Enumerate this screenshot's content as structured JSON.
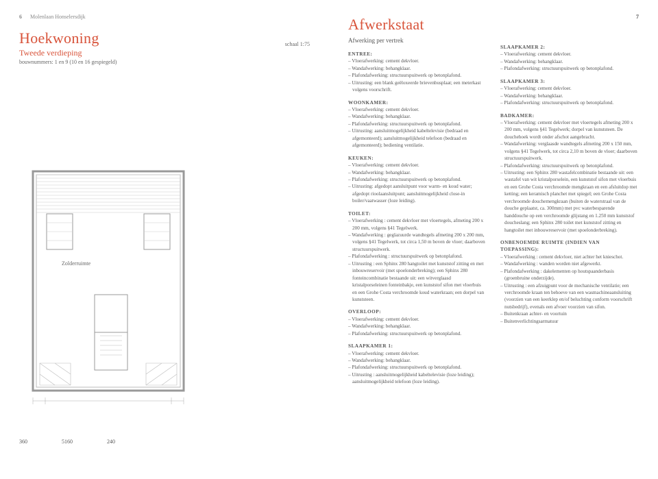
{
  "header": {
    "pageLeft": "6",
    "pageRight": "7",
    "text": "Molenlaan Honselersdijk"
  },
  "left": {
    "title": "Hoekwoning",
    "subtitle": "Tweede verdieping",
    "bouwnummers": "bouwnummers: 1 en 9 (10 en 16 gespiegeld)",
    "schaal": "schaal 1:75",
    "zolder": "Zolderruimte",
    "dim1": "360",
    "dim2": "5160",
    "dim3": "240"
  },
  "right": {
    "title": "Afwerkstaat",
    "subtitle": "Afwerking per vertrek",
    "sections": {
      "entree": {
        "h": "ENTREE:",
        "lines": [
          "– Vloerafwerking: cement dekvloer.",
          "– Wandafwerking: behangklaar.",
          "– Plafondafwerking: structuurspuitwerk op betonplafond.",
          "– Uitrusting: een blank geëloxeerde brievenbusplaat; een meterkast volgens voorschrift."
        ]
      },
      "woonkamer": {
        "h": "WOONKAMER:",
        "lines": [
          "– Vloerafwerking: cement dekvloer.",
          "– Wandafwerking: behangklaar.",
          "– Plafondafwerking: structuurspuitwerk op betonplafond.",
          "– Uitrusting: aansluitmogelijkheid kabeltelevisie (bedraad en afgemonteerd); aansluitmogelijkheid telefoon (bedraad en afgemonteerd); bediening ventilatie."
        ]
      },
      "keuken": {
        "h": "KEUKEN:",
        "lines": [
          "– Vloerafwerking: cement dekvloer.",
          "– Wandafwerking: behangklaar.",
          "– Plafondafwerking: structuurspuitwerk op betonplafond.",
          "– Uitrusting: afgedopt aansluitpunt voor warm- en koud water; afgedopt rioolaansluitpunt; aansluitmogelijkheid close-in boiler/vaatwasser (loze leiding)."
        ]
      },
      "toilet": {
        "h": "TOILET:",
        "lines": [
          "– Vloerafwerking : cement dekvloer met vloertegels, afmeting 200 x 200 mm, volgens §41 Tegelwerk.",
          "– Wandafwerking : geglazuurde wandtegels afmeting 200 x 200 mm, volgens §41 Tegelwerk, tot circa 1,50 m boven de vloer; daarboven structuurspuitwerk.",
          "– Plafondafwerking : structuurspuitwerk op betonplafond.",
          "– Uitrusting : een Sphinx 280 hangtoilet met kunststof zitting en met inbouwreservoir (met spoelonderbreking); een Sphinx 280 fonteincombinatie bestaande uit: een witverglaasd kristalporseleinen fonteinbakje, een kunststof sifon met vloerbuis en een Grohe Costa verchroomde koud waterkraan; een dorpel van kunststeen."
        ]
      },
      "overloop": {
        "h": "OVERLOOP:",
        "lines": [
          "– Vloerafwerking: cement dekvloer.",
          "– Wandafwerking: behangklaar.",
          "– Plafondafwerking: structuurspuitwerk op betonplafond."
        ]
      },
      "slaap1": {
        "h": "SLAAPKAMER 1:",
        "lines": [
          "– Vloerafwerking: cement dekvloer.",
          "– Wandafwerking: behangklaar.",
          "– Plafondafwerking: structuurspuitwerk op betonplafond.",
          "– Uitrusting : aansluitmogelijkheid kabeltelevisie (loze leiding); aansluitmogelijkheid telefoon (loze leiding)."
        ]
      },
      "slaap2": {
        "h": "SLAAPKAMER 2:",
        "lines": [
          "– Vloerafwerking: cement dekvloer.",
          "– Wandafwerking: behangklaar.",
          "– Plafondafwerking: structuurspuitwerk op betonplafond."
        ]
      },
      "slaap3": {
        "h": "SLAAPKAMER 3:",
        "lines": [
          "– Vloerafwerking: cement dekvloer.",
          "– Wandafwerking: behangklaar.",
          "– Plafondafwerking: structuurspuitwerk op betonplafond."
        ]
      },
      "badkamer": {
        "h": "BADKAMER:",
        "lines": [
          "– Vloerafwerking: cement dekvloer met vloertegels afmeting 200 x 200 mm, volgens §41 Tegelwerk; dorpel van kunststeen. De douchehoek wordt onder afschot aangebracht.",
          "– Wandafwerking: verglaasde wandtegels afmeting 200 x 150 mm, volgens §41 Tegelwerk, tot circa 2,10 m boven de vloer; daarboven structuurspuitwerk.",
          "– Plafondafwerking: structuurspuitwerk op betonplafond.",
          "– Uitrusting: een Sphinx 280 wastafelcombinatie bestaande uit: een wastafel van wit kristalporselein, een kunststof sifon met vloerbuis en een Grohe Costa verchroomde mengkraan en een afsluitdop met ketting; een keramisch planchet met spiegel; een Grohe Costa verchroomde douchemengkraan (buiten de waterstraal van de douche geplaatst, ca. 300mm) met pvc waterbesparende handdouche op een verchroomde glijstang en 1.250 mm kunststof doucheslang; een Sphinx 280 toilet met kunststof zitting en hangtoilet met inbouwreservoir (met spoelonderbreking)."
        ]
      },
      "onbenoemd": {
        "h": "ONBENOEMDE RUIMTE (INDIEN VAN TOEPASSING):",
        "lines": [
          "– Vloerafwerking : cement dekvloer, niet achter het knieschot.",
          "– Wandafwerking : wanden worden niet afgewerkt.",
          "– Plafondafwerking : dakelementen op houtspaanderbasis (groenbruine onderzijde).",
          "– Uitrusting : een afzuigpunt voor de mechanische ventilatie; een verchroomde kraan ten behoeve van een wasmachineaansluiting (voorzien van een keerklep en/of beluchting conform voorschrift nutsbedrijf), evenals een afvoer voorzien van sifon.",
          "– Buitenkraan achter- en voortuin",
          "– Buitenverlichtingsarmatuur"
        ]
      }
    }
  }
}
